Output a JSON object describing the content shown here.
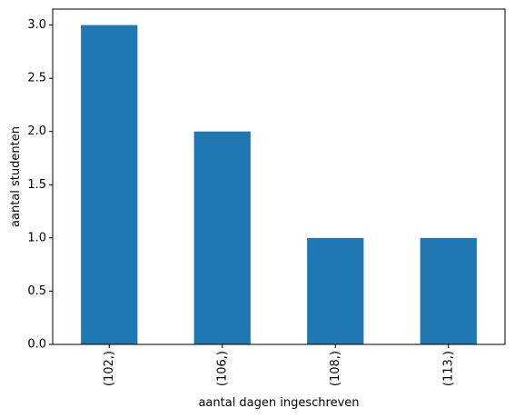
{
  "chart_data": {
    "type": "bar",
    "title": "",
    "xlabel": "aantal dagen ingeschreven",
    "ylabel": "aantal studenten",
    "categories": [
      "(102,)",
      "(106,)",
      "(108,)",
      "(113,)"
    ],
    "values": [
      3,
      2,
      1,
      1
    ],
    "ylim": [
      0,
      3.15
    ],
    "yticks": [
      "0.0",
      "0.5",
      "1.0",
      "1.5",
      "2.0",
      "2.5",
      "3.0"
    ],
    "grid": false,
    "legend": "none",
    "bar_color": "#1f77b4",
    "xtick_rotation": "vertical"
  }
}
